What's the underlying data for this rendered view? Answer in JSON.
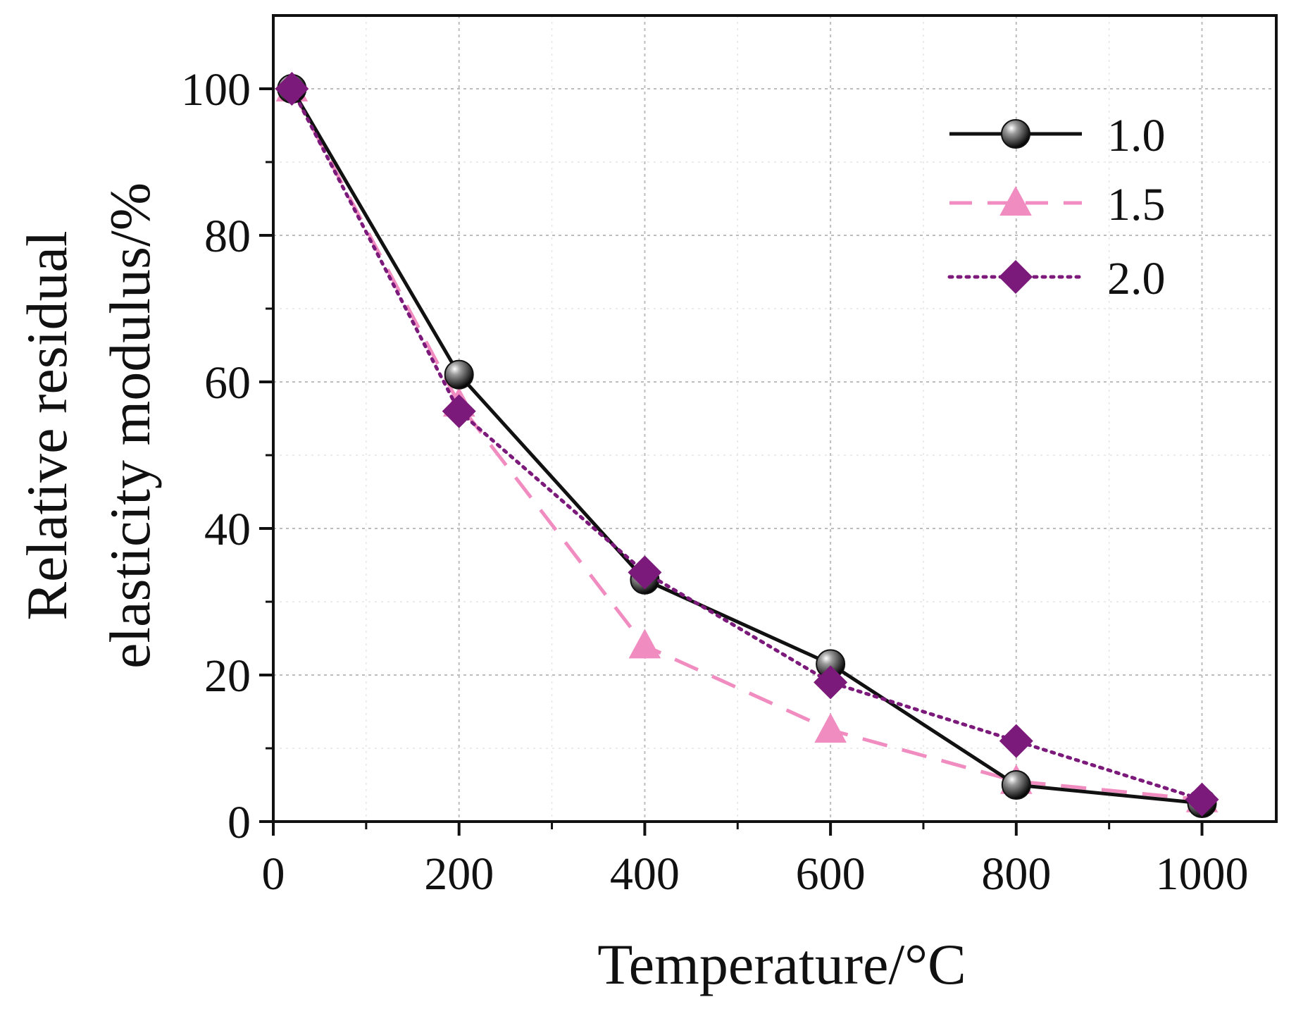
{
  "chart_data": {
    "type": "line",
    "title": "",
    "xlabel": "Temperature/°C",
    "ylabel_lines": [
      "Relative residual",
      "elasticity modulus/%"
    ],
    "xlim": [
      0,
      1080
    ],
    "ylim": [
      0,
      110
    ],
    "x_ticks": [
      0,
      200,
      400,
      600,
      800,
      1000
    ],
    "x_tick_labels": [
      "0",
      "200",
      "400",
      "600",
      "800",
      "1000"
    ],
    "x_minor_ticks": [
      100,
      300,
      500,
      700,
      900
    ],
    "y_ticks": [
      0,
      20,
      40,
      60,
      80,
      100
    ],
    "y_tick_labels": [
      "0",
      "20",
      "40",
      "60",
      "80",
      "100"
    ],
    "y_minor_ticks": [
      10,
      30,
      50,
      70,
      90
    ],
    "grid": true,
    "legend_position": "top-right",
    "series": [
      {
        "name": "1.0",
        "color": "#111111",
        "line_style": "solid",
        "marker": "sphere",
        "x": [
          20,
          200,
          400,
          600,
          800,
          1000
        ],
        "y": [
          100,
          61,
          33,
          21.5,
          5,
          2.5
        ]
      },
      {
        "name": "1.5",
        "color": "#f08cc0",
        "line_style": "dashed",
        "marker": "triangle",
        "x": [
          20,
          200,
          400,
          600,
          800,
          1000
        ],
        "y": [
          100,
          57,
          24,
          12.5,
          5.5,
          3
        ]
      },
      {
        "name": "2.0",
        "color": "#7b1a7a",
        "line_style": "dotted",
        "marker": "diamond",
        "x": [
          20,
          200,
          400,
          600,
          800,
          1000
        ],
        "y": [
          100,
          56,
          34,
          19,
          11,
          3
        ]
      }
    ]
  }
}
